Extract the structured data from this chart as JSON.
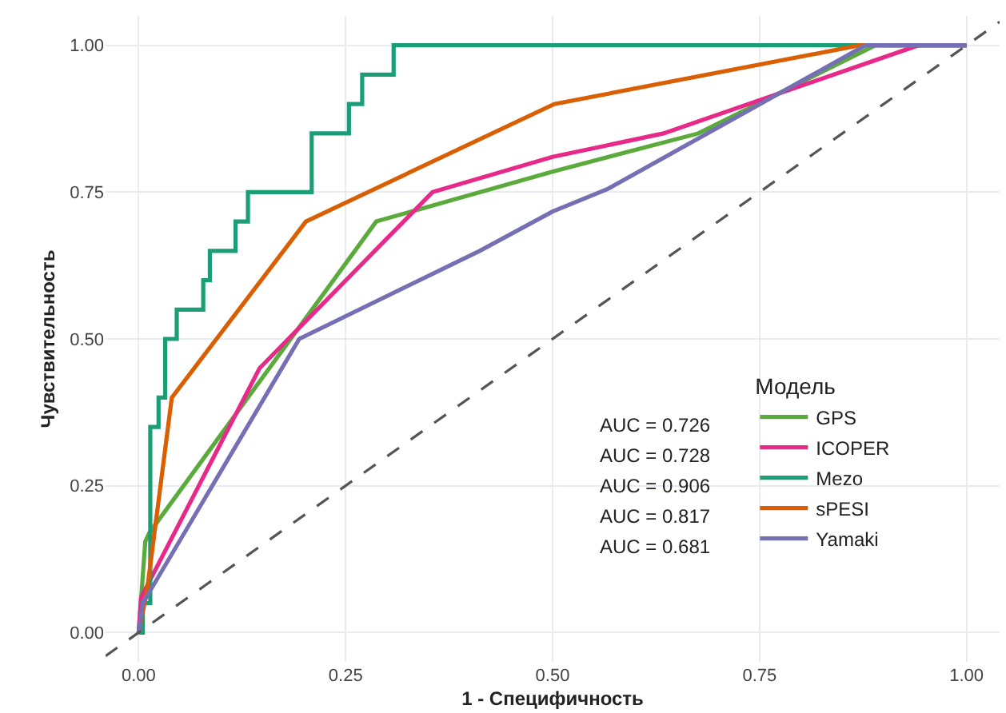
{
  "chart_data": {
    "type": "line",
    "xlabel": "1 - Специфичность",
    "ylabel": "Чувствительность",
    "legend_title": "Модель",
    "xlim": [
      -0.04,
      1.04
    ],
    "ylim": [
      -0.05,
      1.05
    ],
    "xticks": [
      {
        "value": 0,
        "label": "0.00"
      },
      {
        "value": 0.25,
        "label": "0.25"
      },
      {
        "value": 0.5,
        "label": "0.50"
      },
      {
        "value": 0.75,
        "label": "0.75"
      },
      {
        "value": 1,
        "label": "1.00"
      }
    ],
    "yticks": [
      {
        "value": 0,
        "label": "0.00"
      },
      {
        "value": 0.25,
        "label": "0.25"
      },
      {
        "value": 0.5,
        "label": "0.50"
      },
      {
        "value": 0.75,
        "label": "0.75"
      },
      {
        "value": 1,
        "label": "1.00"
      }
    ],
    "grid": true,
    "legend": "bottom right",
    "line_style": "solid",
    "annotations": [
      "AUC = 0.726",
      "AUC = 0.728",
      "AUC = 0.906",
      "AUC = 0.817",
      "AUC = 0.681"
    ],
    "series": [
      {
        "name": "GPS",
        "color": "#5aab3c",
        "x": [
          0,
          0.008,
          0.013,
          0.287,
          0.5,
          0.676,
          0.89,
          1
        ],
        "values": [
          0,
          0.155,
          0.17,
          0.7,
          0.785,
          0.85,
          1,
          1
        ]
      },
      {
        "name": "ICOPER",
        "color": "#e7298a",
        "x": [
          0,
          0.003,
          0.146,
          0.355,
          0.5,
          0.634,
          0.942,
          1
        ],
        "values": [
          0,
          0.06,
          0.45,
          0.75,
          0.81,
          0.85,
          1,
          1
        ]
      },
      {
        "name": "Mezo",
        "type": "step",
        "color": "#1b9e77",
        "x": [
          0,
          0.005,
          0.014,
          0.024,
          0.032,
          0.046,
          0.078,
          0.086,
          0.117,
          0.132,
          0.209,
          0.254,
          0.27,
          0.308,
          1
        ],
        "values": [
          0,
          0.05,
          0.35,
          0.4,
          0.5,
          0.55,
          0.6,
          0.65,
          0.7,
          0.75,
          0.85,
          0.9,
          0.95,
          1,
          1
        ]
      },
      {
        "name": "sPESI",
        "color": "#d95f02",
        "x": [
          0,
          0.01,
          0.04,
          0.202,
          0.502,
          0.871,
          1
        ],
        "values": [
          0,
          0.07,
          0.4,
          0.7,
          0.9,
          1,
          1
        ]
      },
      {
        "name": "Yamaki",
        "color": "#7570b3",
        "x": [
          0,
          0.005,
          0.194,
          0.412,
          0.5,
          0.566,
          0.878,
          1
        ],
        "values": [
          0,
          0.05,
          0.5,
          0.65,
          0.717,
          0.755,
          1,
          1
        ]
      },
      {
        "color": "#555555",
        "line_style": "dashed",
        "x": [
          -0.04,
          1.04
        ],
        "values": [
          -0.04,
          1.04
        ]
      }
    ]
  }
}
